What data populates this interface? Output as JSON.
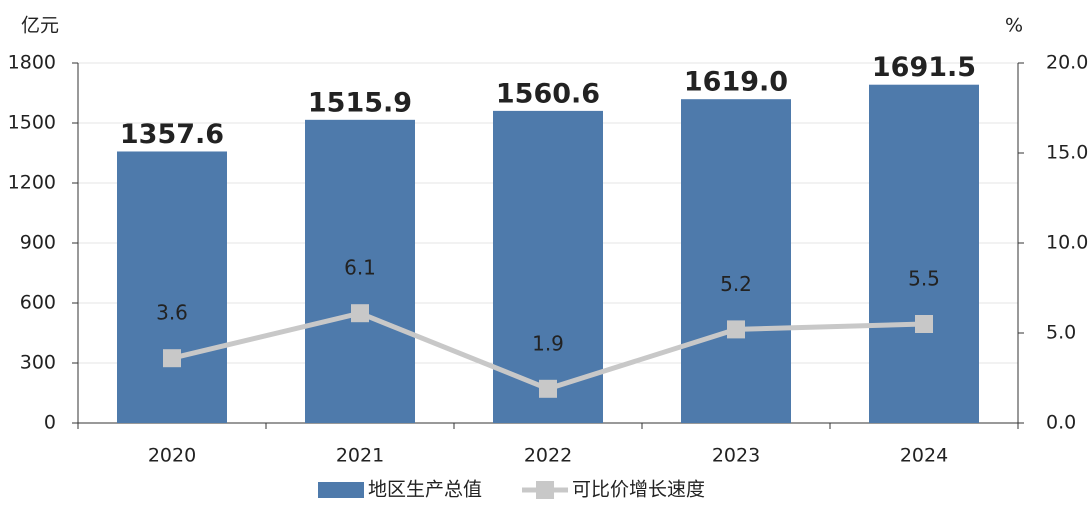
{
  "chart_data": {
    "type": "bar",
    "y_label": "亿元",
    "y2_label": "%",
    "categories": [
      "2020",
      "2021",
      "2022",
      "2023",
      "2024"
    ],
    "series": [
      {
        "name": "地区生产总值",
        "type": "bar",
        "color": "#4e7aab",
        "values": [
          1357.6,
          1515.9,
          1560.6,
          1619.0,
          1691.5
        ],
        "value_labels": [
          "1357.6",
          "1515.9",
          "1560.6",
          "1619.0",
          "1691.5"
        ]
      },
      {
        "name": "可比价增长速度",
        "type": "line",
        "axis": "y2",
        "color": "#c8c8c8",
        "values": [
          3.6,
          6.1,
          1.9,
          5.2,
          5.5
        ]
      }
    ],
    "ylim": [
      0,
      1800
    ],
    "yticks": [
      0,
      300,
      600,
      900,
      1200,
      1500,
      1800
    ],
    "y2lim": [
      0,
      20
    ],
    "y2ticks": [
      {
        "value": 0,
        "label": "0.0"
      },
      {
        "value": 5,
        "label": "5.0"
      },
      {
        "value": 10,
        "label": "10.0"
      },
      {
        "value": 15,
        "label": "15.0"
      },
      {
        "value": 20,
        "label": "20.0"
      }
    ],
    "grid": true
  }
}
